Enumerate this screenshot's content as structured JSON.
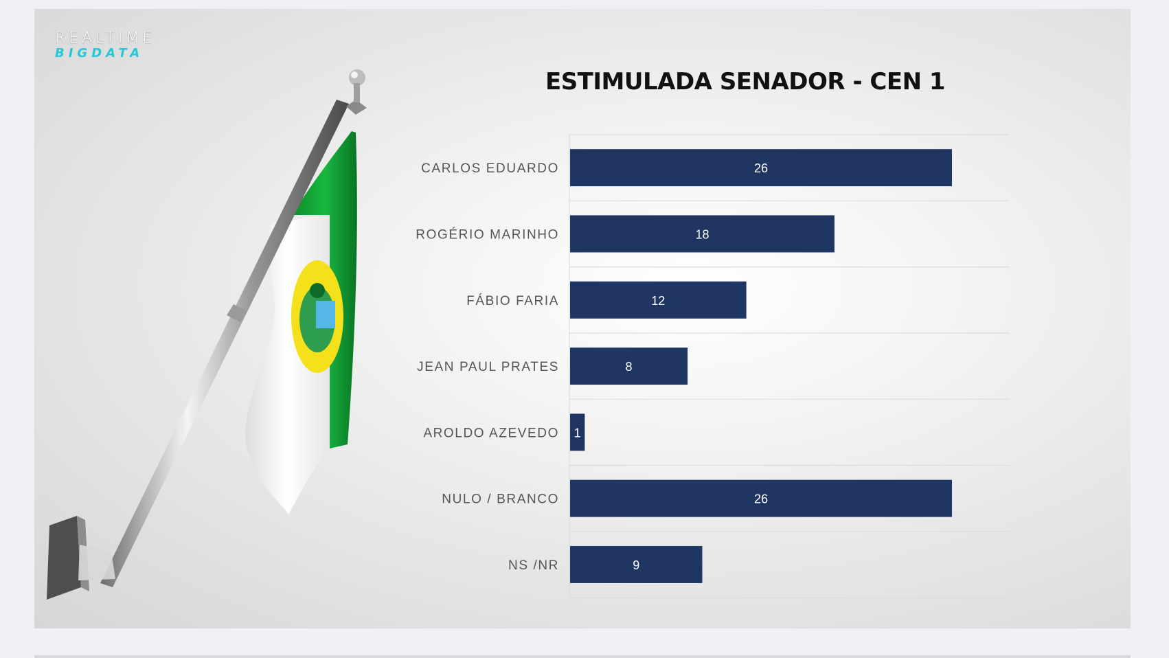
{
  "logo": {
    "line1": "REALTIME",
    "line2": "BIGDATA"
  },
  "colors": {
    "bar": "#1f3562",
    "grid": "#dcdcdc",
    "accent": "#28c7d6"
  },
  "chart_data": {
    "type": "bar",
    "orientation": "horizontal",
    "title": "ESTIMULADA SENADOR - CEN 1",
    "categories": [
      "CARLOS EDUARDO",
      "ROGÉRIO MARINHO",
      "FÁBIO FARIA",
      "JEAN PAUL PRATES",
      "AROLDO AZEVEDO",
      "NULO / BRANCO",
      "NS /NR"
    ],
    "values": [
      26,
      18,
      12,
      8,
      1,
      26,
      9
    ],
    "xlim": [
      0,
      30
    ],
    "grid": true,
    "legend": "none",
    "data_labels": true
  }
}
